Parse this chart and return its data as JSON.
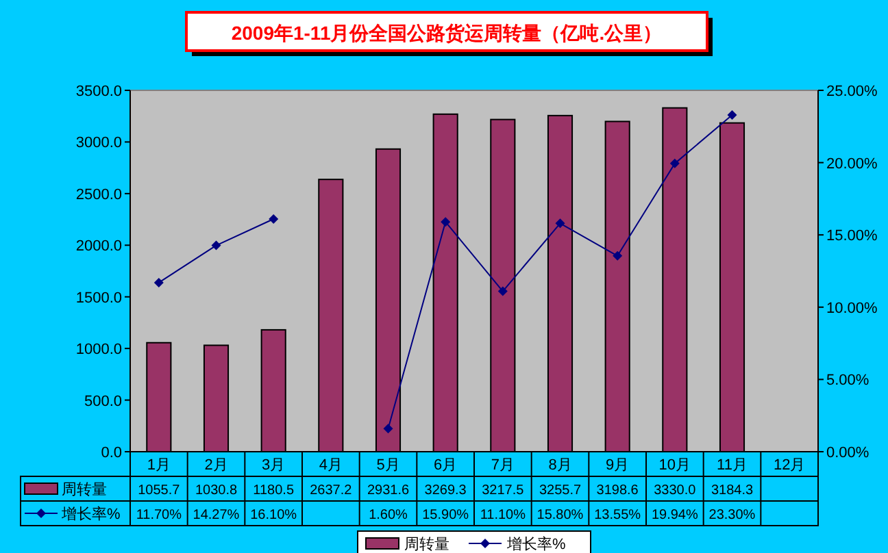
{
  "chart_data": {
    "type": "bar",
    "title": "2009年1-11月份全国公路货运周转量（亿吨.公里）",
    "categories": [
      "1月",
      "2月",
      "3月",
      "4月",
      "5月",
      "6月",
      "7月",
      "8月",
      "9月",
      "10月",
      "11月",
      "12月"
    ],
    "series": [
      {
        "name": "周转量",
        "color": "#993366",
        "values": [
          1055.7,
          1030.8,
          1180.5,
          2637.2,
          2931.6,
          3269.3,
          3217.5,
          3255.7,
          3198.6,
          3330.0,
          3184.3,
          null
        ],
        "value_labels": [
          "1055.7",
          "1030.8",
          "1180.5",
          "2637.2",
          "2931.6",
          "3269.3",
          "3217.5",
          "3255.7",
          "3198.6",
          "3330.0",
          "3184.3",
          null
        ]
      },
      {
        "name": "增长率%",
        "type": "line",
        "axis": "y2",
        "color": "#000080",
        "marker": "diamond",
        "values": [
          11.7,
          14.27,
          16.1,
          null,
          1.6,
          15.9,
          11.1,
          15.8,
          13.55,
          19.94,
          23.3,
          null
        ],
        "value_labels": [
          "11.70%",
          "14.27%",
          "16.10%",
          null,
          "1.60%",
          "15.90%",
          "11.10%",
          "15.80%",
          "13.55%",
          "19.94%",
          "23.30%",
          null
        ]
      }
    ],
    "ylim": [
      0,
      3500
    ],
    "yticks": [
      {
        "value": 0,
        "label": "0.0"
      },
      {
        "value": 500,
        "label": "500.0"
      },
      {
        "value": 1000,
        "label": "1000.0"
      },
      {
        "value": 1500,
        "label": "1500.0"
      },
      {
        "value": 2000,
        "label": "2000.0"
      },
      {
        "value": 2500,
        "label": "2500.0"
      },
      {
        "value": 3000,
        "label": "3000.0"
      },
      {
        "value": 3500,
        "label": "3500.0"
      }
    ],
    "y2lim": [
      0,
      25
    ],
    "y2ticks": [
      {
        "value": 0,
        "label": "0.00%"
      },
      {
        "value": 5,
        "label": "5.00%"
      },
      {
        "value": 10,
        "label": "10.00%"
      },
      {
        "value": 15,
        "label": "15.00%"
      },
      {
        "value": 20,
        "label": "20.00%"
      },
      {
        "value": 25,
        "label": "25.00%"
      }
    ],
    "legend": "bottom"
  }
}
